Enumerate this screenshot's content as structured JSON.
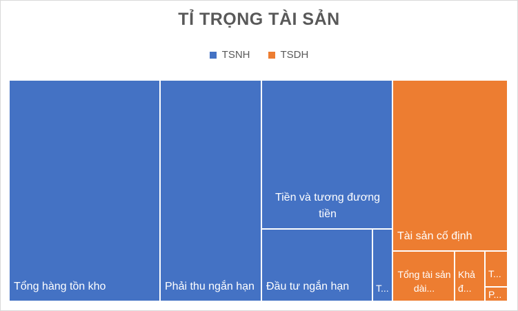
{
  "title": "TỈ TRỌNG TÀI SẢN",
  "legend": [
    {
      "name": "TSNH",
      "color": "#4472C4"
    },
    {
      "name": "TSDH",
      "color": "#ED7D31"
    }
  ],
  "chart_data": {
    "type": "treemap",
    "title": "TỈ TRỌNG TÀI SẢN",
    "legend_position": "top",
    "groups": [
      {
        "name": "TSNH",
        "color": "#4472C4",
        "items": [
          {
            "label": "Tổng hàng tồn kho",
            "value": 29.6
          },
          {
            "label": "Phải thu ngắn hạn",
            "value": 19.6
          },
          {
            "label": "Tiền và tương đương tiền",
            "value": 14.4
          },
          {
            "label": "Đầu tư ngắn hạn",
            "value": 6.7
          },
          {
            "label": "T...",
            "value": 1.0
          }
        ]
      },
      {
        "name": "TSDH",
        "color": "#ED7D31",
        "items": [
          {
            "label": "Tài sản cố định",
            "value": 19.1
          },
          {
            "label": "Tổng tài sản dài...",
            "value": 5.5
          },
          {
            "label": "Khả đ...",
            "value": 2.8
          },
          {
            "label": "T...",
            "value": 1.1
          },
          {
            "label": "P...",
            "value": 0.5
          }
        ]
      }
    ]
  }
}
